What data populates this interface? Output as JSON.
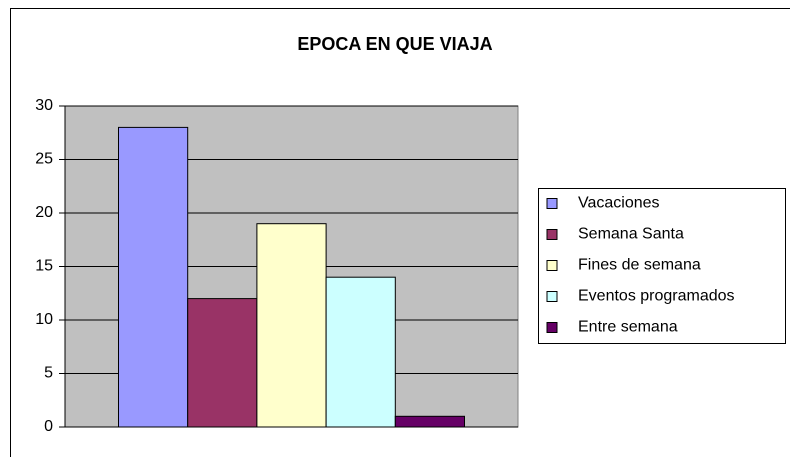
{
  "chart_data": {
    "type": "bar",
    "title": "EPOCA EN QUE VIAJA",
    "series": [
      {
        "name": "Vacaciones",
        "color": "#9999ff",
        "values": [
          28
        ]
      },
      {
        "name": "Semana Santa",
        "color": "#993366",
        "values": [
          12
        ]
      },
      {
        "name": "Fines de semana",
        "color": "#ffffcc",
        "values": [
          19
        ]
      },
      {
        "name": "Eventos programados",
        "color": "#ccffff",
        "values": [
          14
        ]
      },
      {
        "name": "Entre semana",
        "color": "#660066",
        "values": [
          1
        ]
      }
    ],
    "ylim": [
      0,
      30
    ],
    "yticks": [
      0,
      5,
      10,
      15,
      20,
      25,
      30
    ],
    "grid": true,
    "legend": "right"
  }
}
